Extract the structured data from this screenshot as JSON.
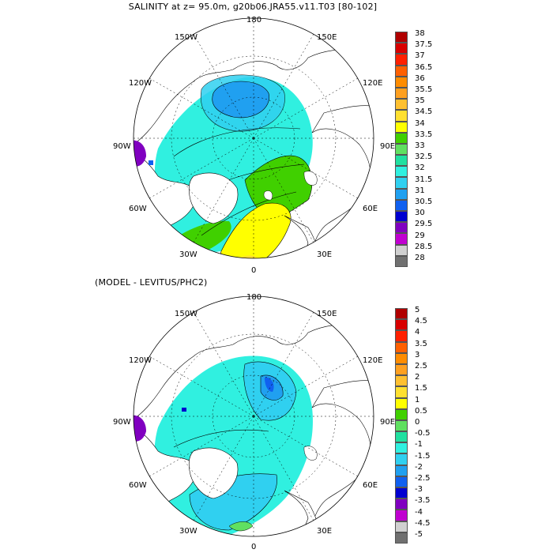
{
  "titles": {
    "top": "SALINITY at z=  95.0m, g20b06.JRA55.v11.T03 [80-102]",
    "bottom": "(MODEL - LEVITUS/PHC2)"
  },
  "lon_labels": {
    "l180": "180",
    "l150w": "150W",
    "l150e": "150E",
    "l120w": "120W",
    "l120e": "120E",
    "l90w": "90W",
    "l90e": "90E",
    "l60w": "60W",
    "l60e": "60E",
    "l30w": "30W",
    "l30e": "30E",
    "l0": "0"
  },
  "colorbar_top": {
    "labels": [
      "38",
      "37.5",
      "37",
      "36.5",
      "36",
      "35.5",
      "35",
      "34.5",
      "34",
      "33.5",
      "33",
      "32.5",
      "32",
      "31.5",
      "31",
      "30.5",
      "30",
      "29.5",
      "29",
      "28.5",
      "28"
    ],
    "colors": [
      "#b00000",
      "#d80000",
      "#ff2000",
      "#ff6000",
      "#ff8c00",
      "#ffa020",
      "#ffc030",
      "#ffe030",
      "#ffff00",
      "#40d000",
      "#60e060",
      "#20e0a0",
      "#30f0e0",
      "#30d0f0",
      "#20a0f0",
      "#1060f0",
      "#0000d0",
      "#8000c0",
      "#c000d0",
      "#d0d0d0",
      "#707070"
    ]
  },
  "colorbar_bottom": {
    "labels": [
      "5",
      "4.5",
      "4",
      "3.5",
      "3",
      "2.5",
      "2",
      "1.5",
      "1",
      "0.5",
      "0",
      "-0.5",
      "-1",
      "-1.5",
      "-2",
      "-2.5",
      "-3",
      "-3.5",
      "-4",
      "-4.5",
      "-5"
    ],
    "colors": [
      "#b00000",
      "#d80000",
      "#ff2000",
      "#ff6000",
      "#ff8c00",
      "#ffa020",
      "#ffc030",
      "#ffe030",
      "#ffff00",
      "#40d000",
      "#60e060",
      "#20e0a0",
      "#30f0e0",
      "#30d0f0",
      "#20a0f0",
      "#1060f0",
      "#0000d0",
      "#8000c0",
      "#c000d0",
      "#d0d0d0",
      "#707070"
    ]
  }
}
